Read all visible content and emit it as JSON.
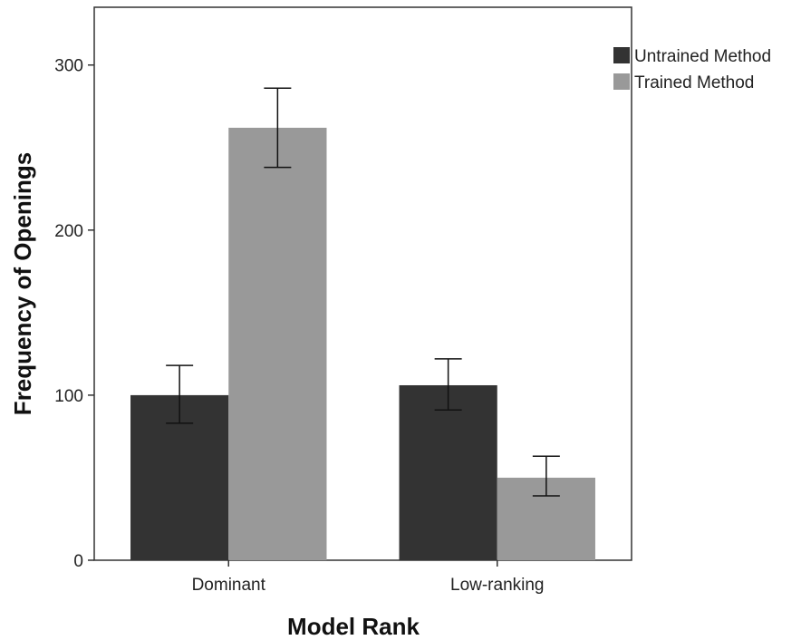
{
  "chart_data": {
    "type": "bar",
    "categories": [
      "Dominant",
      "Low-ranking"
    ],
    "series": [
      {
        "name": "Untrained Method",
        "values": [
          100,
          106
        ],
        "error_low": [
          83,
          91
        ],
        "error_high": [
          118,
          122
        ],
        "color": "#333333"
      },
      {
        "name": "Trained Method",
        "values": [
          262,
          50
        ],
        "error_low": [
          238,
          39
        ],
        "error_high": [
          286,
          63
        ],
        "color": "#999999"
      }
    ],
    "xlabel": "Model Rank",
    "ylabel": "Frequency of Openings",
    "ylim": [
      0,
      335
    ],
    "yticks": [
      0,
      100,
      200,
      300
    ],
    "grid": false,
    "legend_position": "top-right outside"
  }
}
